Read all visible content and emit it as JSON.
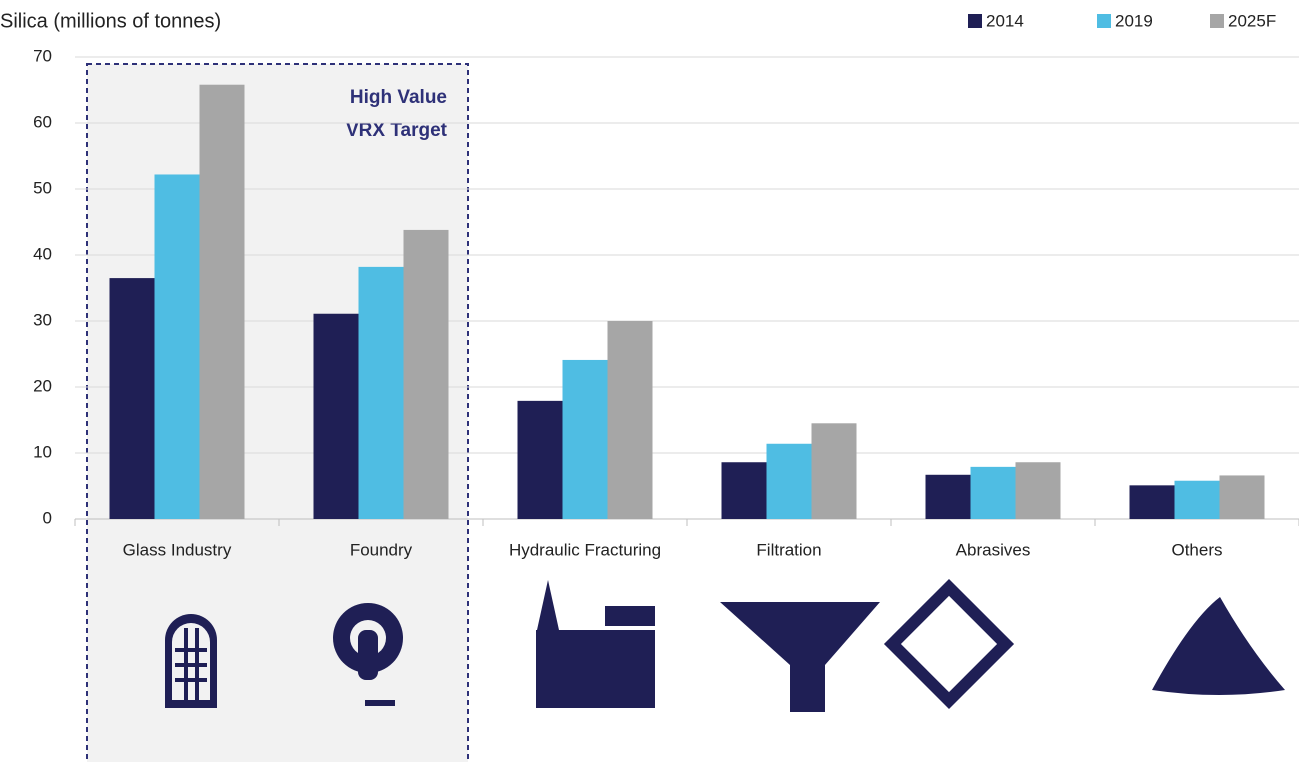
{
  "chart_data": {
    "type": "bar",
    "y_axis_label": "Silica (millions of tonnes)",
    "categories": [
      "Glass Industry",
      "Foundry",
      "Hydraulic Fracturing",
      "Filtration",
      "Abrasives",
      "Others"
    ],
    "series": [
      {
        "name": "2014",
        "color": "#1f1f55",
        "values": [
          36.5,
          31.1,
          17.9,
          8.6,
          6.7,
          5.1
        ]
      },
      {
        "name": "2019",
        "color": "#4fbde3",
        "values": [
          52.2,
          38.2,
          24.1,
          11.4,
          7.9,
          5.8
        ]
      },
      {
        "name": "2025F",
        "color": "#a6a6a6",
        "values": [
          65.8,
          43.8,
          30,
          14.5,
          8.6,
          6.6
        ]
      }
    ],
    "annotation": [
      "High Value",
      "VRX Target"
    ],
    "ylim": [
      0,
      70
    ],
    "yticks": [
      0,
      10,
      20,
      30,
      40,
      50,
      60,
      70
    ],
    "grid": true,
    "legend": "top-right"
  }
}
